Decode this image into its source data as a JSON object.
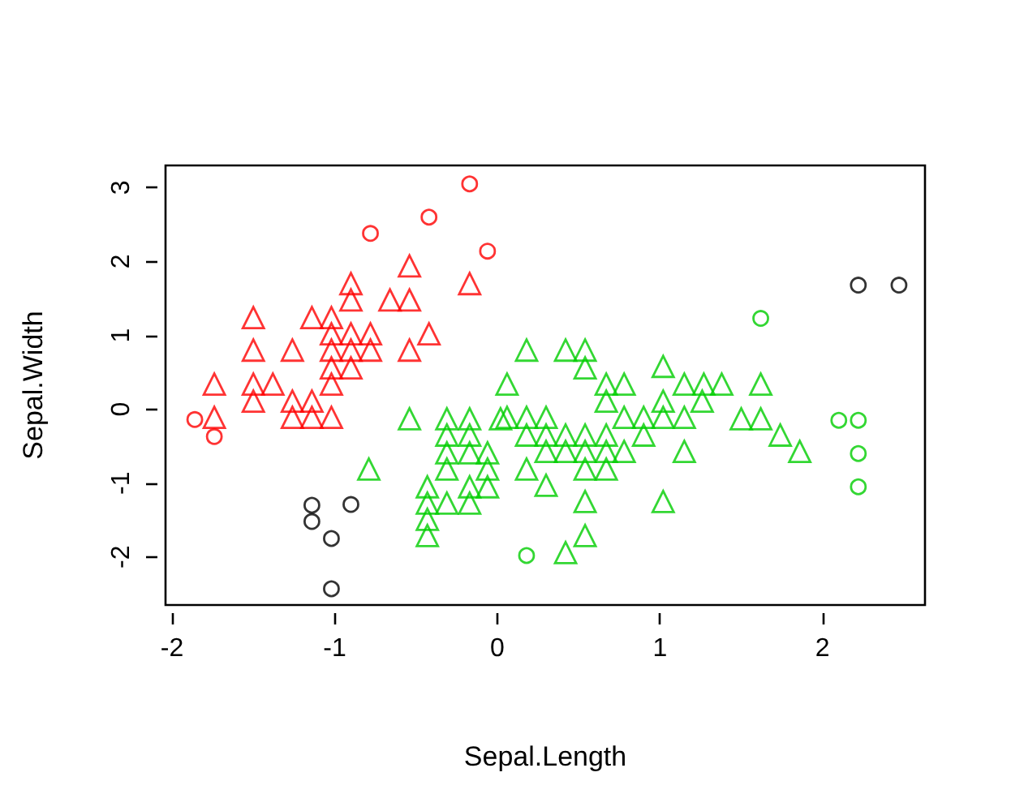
{
  "chart_data": {
    "type": "scatter",
    "xlabel": "Sepal.Length",
    "ylabel": "Sepal.Width",
    "xlim": [
      -2.04,
      2.63
    ],
    "xticks": [
      -2,
      -1,
      0,
      1,
      2
    ],
    "ylim": [
      -2.65,
      3.3
    ],
    "yticks": [
      -2,
      -1,
      0,
      1,
      2,
      3
    ],
    "grid": false,
    "legend": false,
    "series": [
      {
        "color": "#ff0000",
        "marker": "triangle",
        "x": [
          -0.54,
          -0.9,
          -0.17,
          -0.9,
          -0.66,
          -0.54,
          -1.5,
          -1.14,
          -1.02,
          -1.02,
          -0.9,
          -0.78,
          -0.42,
          -1.5,
          -1.26,
          -1.02,
          -0.9,
          -0.78,
          -0.54,
          -1.02,
          -0.9,
          -1.74,
          -1.5,
          -1.38,
          -1.02,
          -1.5,
          -1.26,
          -1.14,
          -1.74,
          -1.26,
          -1.14,
          -1.02
        ],
        "values": [
          1.94,
          1.7,
          1.7,
          1.48,
          1.48,
          1.48,
          1.24,
          1.24,
          1.24,
          1.02,
          1.02,
          1.02,
          1.02,
          0.8,
          0.8,
          0.8,
          0.8,
          0.8,
          0.8,
          0.56,
          0.56,
          0.34,
          0.34,
          0.34,
          0.34,
          0.11,
          0.11,
          0.11,
          -0.11,
          -0.11,
          -0.11,
          -0.11
        ]
      },
      {
        "color": "#ff0000",
        "marker": "circle",
        "x": [
          -0.17,
          -0.42,
          -0.78,
          -0.06,
          -1.86,
          -1.74
        ],
        "values": [
          3.05,
          2.6,
          2.38,
          2.14,
          -0.14,
          -0.37
        ]
      },
      {
        "color": "#00cd00",
        "marker": "triangle",
        "x": [
          -0.54,
          -0.31,
          -0.17,
          0.02,
          -0.31,
          -0.17,
          -0.31,
          -0.17,
          -0.06,
          -0.79,
          -0.31,
          -0.06,
          -0.43,
          -0.17,
          -0.06,
          -0.43,
          -0.31,
          -0.17,
          -0.43,
          -0.43,
          0.18,
          0.42,
          0.54,
          0.54,
          1.02,
          0.06,
          0.67,
          0.78,
          1.15,
          0.67,
          1.02,
          0.06,
          0.18,
          0.3,
          0.78,
          0.9,
          1.02,
          1.15,
          0.18,
          0.3,
          0.42,
          0.54,
          0.67,
          0.9,
          0.3,
          0.42,
          0.54,
          0.67,
          0.78,
          1.15,
          0.18,
          0.54,
          0.67,
          0.3,
          0.54,
          1.02,
          0.54,
          0.42,
          1.27,
          1.38,
          1.62,
          1.26,
          1.5,
          1.62,
          1.74,
          1.86
        ],
        "values": [
          -0.13,
          -0.13,
          -0.13,
          -0.13,
          -0.35,
          -0.35,
          -0.59,
          -0.59,
          -0.59,
          -0.81,
          -0.81,
          -0.81,
          -1.05,
          -1.05,
          -1.05,
          -1.27,
          -1.27,
          -1.27,
          -1.49,
          -1.71,
          0.8,
          0.8,
          0.8,
          0.56,
          0.58,
          0.34,
          0.34,
          0.34,
          0.34,
          0.11,
          0.11,
          -0.11,
          -0.11,
          -0.11,
          -0.11,
          -0.11,
          -0.11,
          -0.11,
          -0.35,
          -0.35,
          -0.35,
          -0.35,
          -0.35,
          -0.35,
          -0.57,
          -0.57,
          -0.57,
          -0.57,
          -0.57,
          -0.57,
          -0.81,
          -0.81,
          -0.81,
          -1.03,
          -1.25,
          -1.25,
          -1.71,
          -1.94,
          0.34,
          0.34,
          0.34,
          0.11,
          -0.13,
          -0.13,
          -0.35,
          -0.57
        ]
      },
      {
        "color": "#00cd00",
        "marker": "circle",
        "x": [
          0.18,
          1.62,
          2.1,
          2.22,
          2.22,
          2.22
        ],
        "values": [
          -1.98,
          1.23,
          -0.15,
          -0.15,
          -0.6,
          -1.05
        ]
      },
      {
        "color": "#000000",
        "marker": "circle",
        "x": [
          -1.14,
          -0.9,
          -1.14,
          -1.02,
          -1.02,
          2.22,
          2.47
        ],
        "values": [
          -1.3,
          -1.29,
          -1.52,
          -1.75,
          -2.43,
          1.68,
          1.68
        ]
      }
    ]
  }
}
